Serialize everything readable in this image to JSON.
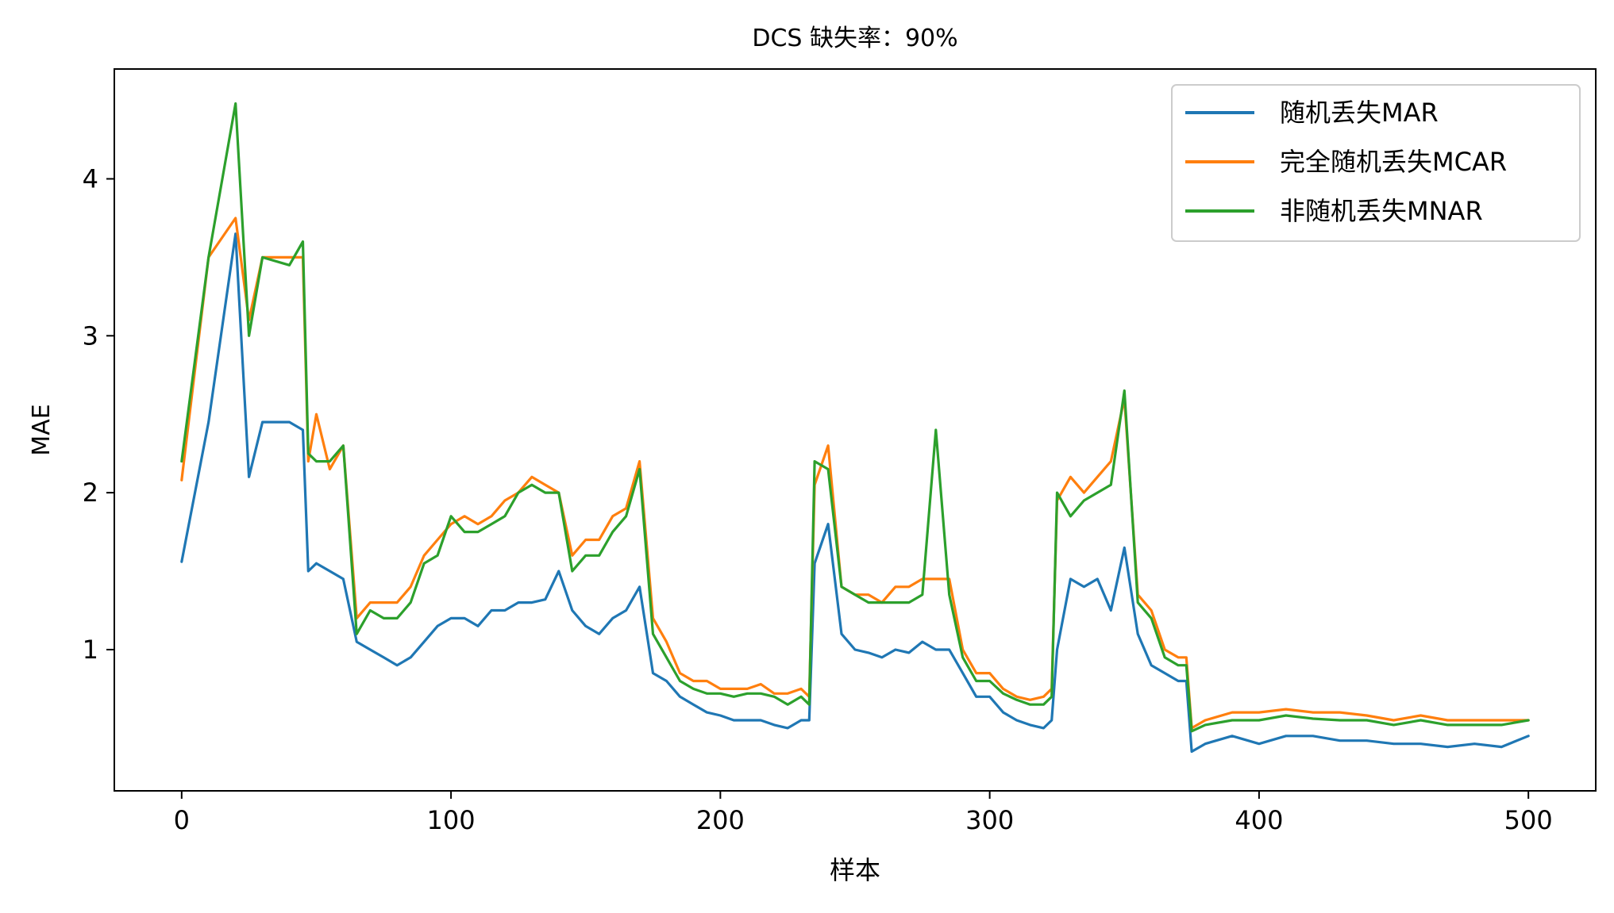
{
  "chart_data": {
    "type": "line",
    "title": "DCS 缺失率：90%",
    "xlabel": "样本",
    "ylabel": "MAE",
    "xlim": [
      -25,
      525
    ],
    "ylim": [
      0.1,
      4.7
    ],
    "xticks": [
      0,
      100,
      200,
      300,
      400,
      500
    ],
    "yticks": [
      1,
      2,
      3,
      4
    ],
    "grid": false,
    "legend_position": "top-right",
    "x": [
      0,
      10,
      20,
      25,
      30,
      40,
      45,
      47,
      50,
      55,
      60,
      65,
      70,
      75,
      80,
      85,
      90,
      95,
      100,
      105,
      110,
      115,
      120,
      125,
      130,
      135,
      140,
      145,
      150,
      155,
      160,
      165,
      170,
      175,
      180,
      185,
      190,
      195,
      200,
      205,
      210,
      215,
      220,
      225,
      230,
      233,
      235,
      240,
      245,
      250,
      255,
      260,
      265,
      270,
      275,
      280,
      285,
      290,
      295,
      300,
      305,
      310,
      315,
      320,
      323,
      325,
      330,
      335,
      340,
      345,
      350,
      355,
      360,
      365,
      370,
      373,
      375,
      380,
      390,
      400,
      410,
      420,
      430,
      440,
      450,
      460,
      470,
      480,
      490,
      500
    ],
    "series": [
      {
        "name": "随机丢失MAR",
        "color": "#1f77b4",
        "values": [
          1.56,
          2.45,
          3.65,
          2.1,
          2.45,
          2.45,
          2.4,
          1.5,
          1.55,
          1.5,
          1.45,
          1.05,
          1.0,
          0.95,
          0.9,
          0.95,
          1.05,
          1.15,
          1.2,
          1.2,
          1.15,
          1.25,
          1.25,
          1.3,
          1.3,
          1.32,
          1.5,
          1.25,
          1.15,
          1.1,
          1.2,
          1.25,
          1.4,
          0.85,
          0.8,
          0.7,
          0.65,
          0.6,
          0.58,
          0.55,
          0.55,
          0.55,
          0.52,
          0.5,
          0.55,
          0.55,
          1.55,
          1.8,
          1.1,
          1.0,
          0.98,
          0.95,
          1.0,
          0.98,
          1.05,
          1.0,
          1.0,
          0.85,
          0.7,
          0.7,
          0.6,
          0.55,
          0.52,
          0.5,
          0.55,
          1.0,
          1.45,
          1.4,
          1.45,
          1.25,
          1.65,
          1.1,
          0.9,
          0.85,
          0.8,
          0.8,
          0.35,
          0.4,
          0.45,
          0.4,
          0.45,
          0.45,
          0.42,
          0.42,
          0.4,
          0.4,
          0.38,
          0.4,
          0.38,
          0.45
        ]
      },
      {
        "name": "完全随机丢失MCAR",
        "color": "#ff7f0e",
        "values": [
          2.08,
          3.5,
          3.75,
          3.1,
          3.5,
          3.5,
          3.5,
          2.2,
          2.5,
          2.15,
          2.3,
          1.2,
          1.3,
          1.3,
          1.3,
          1.4,
          1.6,
          1.7,
          1.8,
          1.85,
          1.8,
          1.85,
          1.95,
          2.0,
          2.1,
          2.05,
          2.0,
          1.6,
          1.7,
          1.7,
          1.85,
          1.9,
          2.2,
          1.2,
          1.05,
          0.85,
          0.8,
          0.8,
          0.75,
          0.75,
          0.75,
          0.78,
          0.72,
          0.72,
          0.75,
          0.7,
          2.05,
          2.3,
          1.4,
          1.35,
          1.35,
          1.3,
          1.4,
          1.4,
          1.45,
          1.45,
          1.45,
          1.0,
          0.85,
          0.85,
          0.75,
          0.7,
          0.68,
          0.7,
          0.75,
          1.95,
          2.1,
          2.0,
          2.1,
          2.2,
          2.6,
          1.35,
          1.25,
          1.0,
          0.95,
          0.95,
          0.5,
          0.55,
          0.6,
          0.6,
          0.62,
          0.6,
          0.6,
          0.58,
          0.55,
          0.58,
          0.55,
          0.55,
          0.55,
          0.55
        ]
      },
      {
        "name": "非随机丢失MNAR",
        "color": "#2ca02c",
        "values": [
          2.2,
          3.5,
          4.48,
          3.0,
          3.5,
          3.45,
          3.6,
          2.25,
          2.2,
          2.2,
          2.3,
          1.1,
          1.25,
          1.2,
          1.2,
          1.3,
          1.55,
          1.6,
          1.85,
          1.75,
          1.75,
          1.8,
          1.85,
          2.0,
          2.05,
          2.0,
          2.0,
          1.5,
          1.6,
          1.6,
          1.75,
          1.85,
          2.15,
          1.1,
          0.95,
          0.8,
          0.75,
          0.72,
          0.72,
          0.7,
          0.72,
          0.72,
          0.7,
          0.65,
          0.7,
          0.65,
          2.2,
          2.15,
          1.4,
          1.35,
          1.3,
          1.3,
          1.3,
          1.3,
          1.35,
          2.4,
          1.35,
          0.95,
          0.8,
          0.8,
          0.72,
          0.68,
          0.65,
          0.65,
          0.7,
          2.0,
          1.85,
          1.95,
          2.0,
          2.05,
          2.65,
          1.3,
          1.2,
          0.95,
          0.9,
          0.9,
          0.48,
          0.52,
          0.55,
          0.55,
          0.58,
          0.56,
          0.55,
          0.55,
          0.52,
          0.55,
          0.52,
          0.52,
          0.52,
          0.55
        ]
      }
    ]
  }
}
